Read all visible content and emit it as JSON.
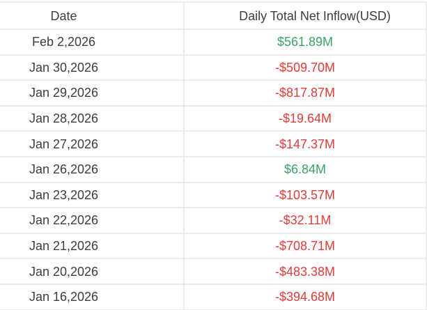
{
  "chart_data": {
    "type": "table",
    "columns": [
      "Date",
      "Daily Total Net Inflow(USD)"
    ],
    "rows": [
      {
        "date": "Feb 2,2026",
        "value": "$561.89M",
        "direction": "positive"
      },
      {
        "date": "Jan 30,2026",
        "value": "-$509.70M",
        "direction": "negative"
      },
      {
        "date": "Jan 29,2026",
        "value": "-$817.87M",
        "direction": "negative"
      },
      {
        "date": "Jan 28,2026",
        "value": "-$19.64M",
        "direction": "negative"
      },
      {
        "date": "Jan 27,2026",
        "value": "-$147.37M",
        "direction": "negative"
      },
      {
        "date": "Jan 26,2026",
        "value": "$6.84M",
        "direction": "positive"
      },
      {
        "date": "Jan 23,2026",
        "value": "-$103.57M",
        "direction": "negative"
      },
      {
        "date": "Jan 22,2026",
        "value": "-$32.11M",
        "direction": "negative"
      },
      {
        "date": "Jan 21,2026",
        "value": "-$708.71M",
        "direction": "negative"
      },
      {
        "date": "Jan 20,2026",
        "value": "-$483.38M",
        "direction": "negative"
      },
      {
        "date": "Jan 16,2026",
        "value": "-$394.68M",
        "direction": "negative"
      }
    ],
    "value_unit": "USD millions",
    "numeric_values_musd": [
      561.89,
      -509.7,
      -817.87,
      -19.64,
      -147.37,
      6.84,
      -103.57,
      -32.11,
      -708.71,
      -483.38,
      -394.68
    ]
  },
  "colors": {
    "positive": "#3CA266",
    "negative": "#E23C38",
    "text": "#3D3D3D",
    "border": "#ECECEC"
  }
}
